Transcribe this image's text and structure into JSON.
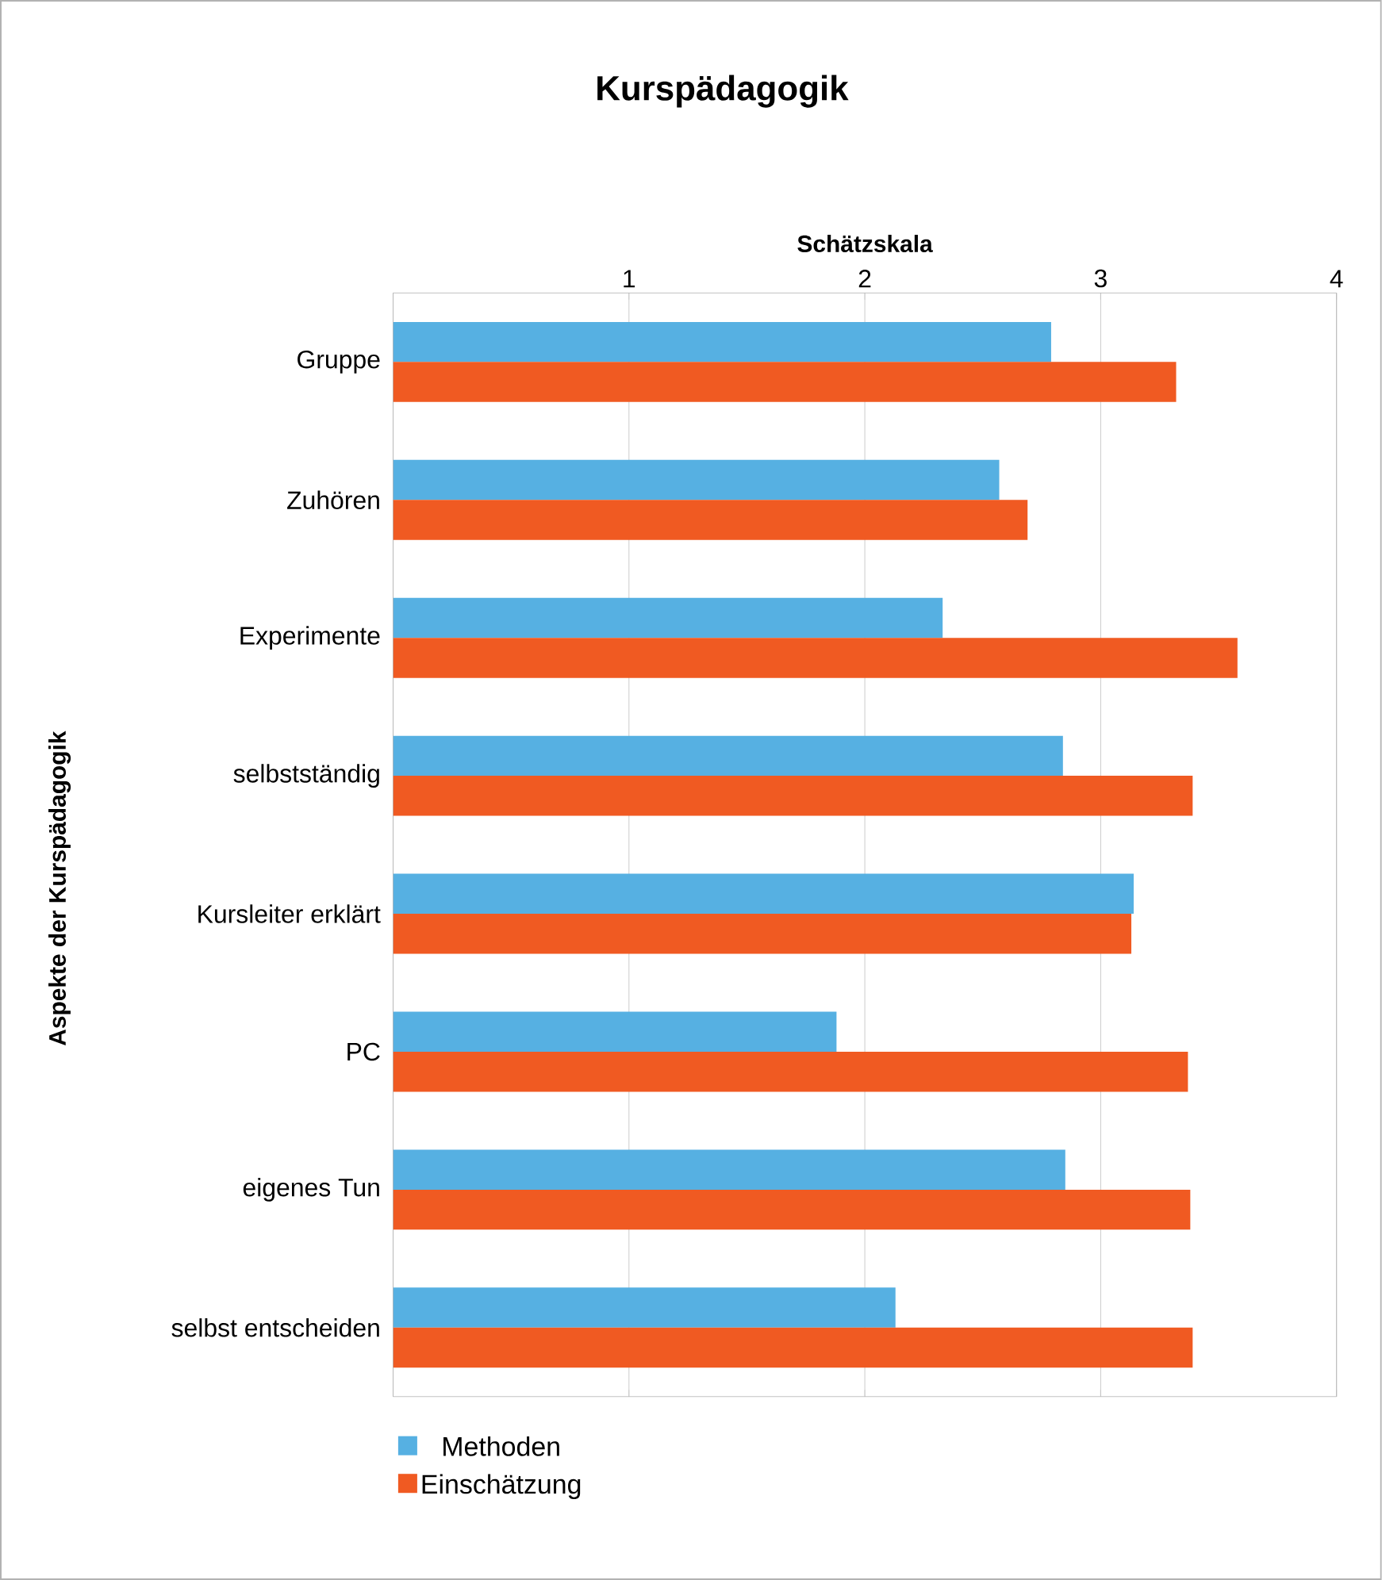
{
  "chart_data": {
    "type": "bar",
    "orientation": "horizontal",
    "title": "Kurspädagogik",
    "xlabel": "Schätzskala",
    "ylabel": "Aspekte der Kurspädagogik",
    "categories": [
      "Gruppe",
      "Zuhören",
      "Experimente",
      "selbstständig",
      "Kursleiter erklärt",
      "PC",
      "eigenes Tun",
      "selbst entscheiden"
    ],
    "series": [
      {
        "name": "Methoden",
        "color": "#56b0e2",
        "values": [
          2.79,
          2.57,
          2.33,
          2.84,
          3.14,
          1.88,
          2.85,
          2.13
        ]
      },
      {
        "name": "Einschätzung",
        "color": "#f05a22",
        "values": [
          3.32,
          2.69,
          3.58,
          3.39,
          3.13,
          3.37,
          3.38,
          3.39
        ]
      }
    ],
    "xlim": [
      0,
      4
    ],
    "xticks": [
      {
        "value": 0,
        "label": null
      },
      1,
      2,
      3,
      4
    ],
    "grid": "x",
    "legend": "bottom left"
  }
}
